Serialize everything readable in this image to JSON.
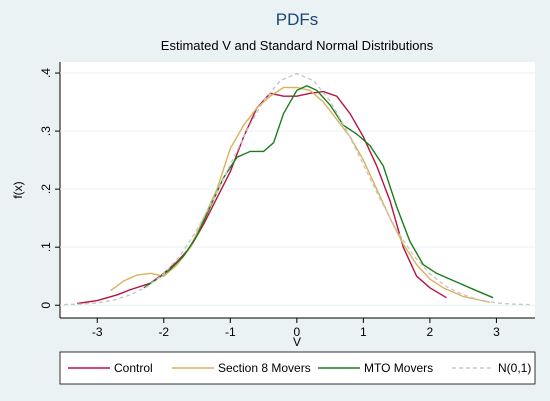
{
  "chart_data": {
    "type": "line",
    "title": "PDFs",
    "subtitle": "Estimated V and Standard Normal Distributions",
    "x_label": "V",
    "y_label": "f(x)",
    "xlim": [
      -3.56,
      3.58
    ],
    "ylim": [
      -0.022,
      0.419
    ],
    "xticks": [
      -3,
      -2,
      -1,
      0,
      1,
      2,
      3
    ],
    "yticks": [
      0,
      {
        "value": 0.1,
        "label": ".1"
      },
      {
        "value": 0.2,
        "label": ".2"
      },
      {
        "value": 0.3,
        "label": ".3"
      },
      {
        "value": 0.4,
        "label": ".4"
      }
    ],
    "grid": true,
    "legend": "bottom",
    "series": [
      {
        "name": "Control",
        "color": "#b8123f",
        "line_style": "solid",
        "x": [
          -3.3,
          -3,
          -2.7,
          -2.5,
          -2.2,
          -2,
          -1.8,
          -1.6,
          -1.4,
          -1.2,
          -1,
          -0.8,
          -0.6,
          -0.4,
          -0.2,
          0,
          0.2,
          0.4,
          0.6,
          0.8,
          1,
          1.2,
          1.4,
          1.6,
          1.8,
          2,
          2.25
        ],
        "values": [
          0.003,
          0.008,
          0.018,
          0.027,
          0.038,
          0.055,
          0.075,
          0.1,
          0.14,
          0.185,
          0.23,
          0.29,
          0.34,
          0.365,
          0.36,
          0.36,
          0.365,
          0.368,
          0.36,
          0.33,
          0.29,
          0.24,
          0.18,
          0.1,
          0.05,
          0.03,
          0.013
        ]
      },
      {
        "name": "Section 8 Movers",
        "color": "#d9b25c",
        "line_style": "solid",
        "x": [
          -2.8,
          -2.6,
          -2.4,
          -2.2,
          -2,
          -1.8,
          -1.6,
          -1.4,
          -1.2,
          -1,
          -0.8,
          -0.6,
          -0.4,
          -0.2,
          0,
          0.2,
          0.4,
          0.6,
          0.8,
          1,
          1.2,
          1.4,
          1.6,
          1.8,
          2,
          2.2,
          2.5,
          2.9
        ],
        "values": [
          0.025,
          0.042,
          0.052,
          0.055,
          0.05,
          0.07,
          0.1,
          0.15,
          0.2,
          0.27,
          0.31,
          0.34,
          0.36,
          0.375,
          0.375,
          0.37,
          0.35,
          0.32,
          0.29,
          0.25,
          0.2,
          0.15,
          0.105,
          0.07,
          0.045,
          0.03,
          0.015,
          0.005
        ]
      },
      {
        "name": "MTO Movers",
        "color": "#1c7d1c",
        "line_style": "solid",
        "x": [
          -2.3,
          -2.1,
          -1.9,
          -1.7,
          -1.5,
          -1.3,
          -1.1,
          -0.9,
          -0.7,
          -0.5,
          -0.35,
          -0.2,
          0,
          0.15,
          0.3,
          0.5,
          0.7,
          0.9,
          1.1,
          1.3,
          1.5,
          1.7,
          1.9,
          2.1,
          2.4,
          2.7,
          2.95
        ],
        "values": [
          0.03,
          0.045,
          0.062,
          0.085,
          0.12,
          0.17,
          0.22,
          0.255,
          0.265,
          0.265,
          0.28,
          0.33,
          0.37,
          0.378,
          0.37,
          0.345,
          0.31,
          0.295,
          0.275,
          0.24,
          0.17,
          0.11,
          0.07,
          0.055,
          0.04,
          0.025,
          0.013
        ]
      },
      {
        "name": "N(0,1)",
        "color": "#c8c8c8",
        "line_style": "dashed",
        "x": [
          -3.5,
          -3.25,
          -3,
          -2.75,
          -2.5,
          -2.25,
          -2,
          -1.75,
          -1.5,
          -1.25,
          -1,
          -0.75,
          -0.5,
          -0.25,
          0,
          0.25,
          0.5,
          0.75,
          1,
          1.25,
          1.5,
          1.75,
          2,
          2.25,
          2.5,
          2.75,
          3,
          3.25,
          3.5
        ],
        "values": [
          0.001,
          0.002,
          0.004,
          0.009,
          0.018,
          0.032,
          0.054,
          0.086,
          0.13,
          0.183,
          0.242,
          0.301,
          0.352,
          0.387,
          0.399,
          0.387,
          0.352,
          0.301,
          0.242,
          0.183,
          0.13,
          0.086,
          0.054,
          0.032,
          0.018,
          0.009,
          0.004,
          0.002,
          0.001
        ]
      }
    ]
  }
}
